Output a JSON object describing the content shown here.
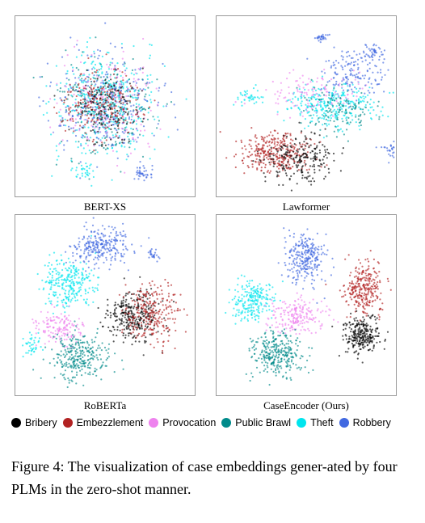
{
  "panels": [
    {
      "key": "bert",
      "label": "BERT-XS"
    },
    {
      "key": "lawformer",
      "label": "Lawformer"
    },
    {
      "key": "roberta",
      "label": "RoBERTa"
    },
    {
      "key": "caseencoder",
      "label": "CaseEncoder (Ours)"
    }
  ],
  "legend": [
    {
      "label": "Bribery",
      "color": "#000000"
    },
    {
      "label": "Embezzlement",
      "color": "#b22222"
    },
    {
      "label": "Provocation",
      "color": "#ee82ee"
    },
    {
      "label": "Public Brawl",
      "color": "#008b8b"
    },
    {
      "label": "Theft",
      "color": "#00e5ee"
    },
    {
      "label": "Robbery",
      "color": "#4169e1"
    }
  ],
  "caption": "Figure 4: The visualization of case embeddings gener-ated by four PLMs in the zero-shot manner."
}
